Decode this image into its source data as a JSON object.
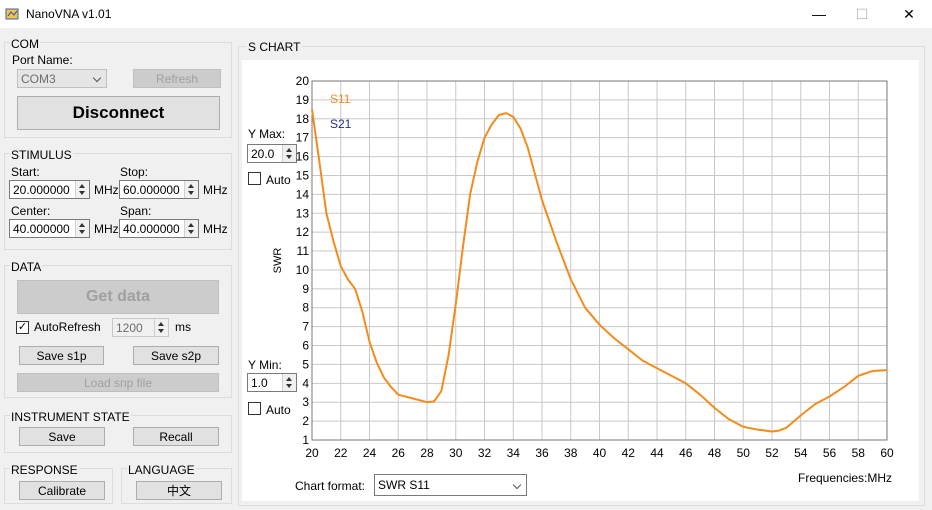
{
  "window": {
    "title": "NanoVNA v1.01",
    "minimize": "—",
    "maximize": "☐",
    "close": "✕"
  },
  "com": {
    "title": "COM",
    "port_label": "Port Name:",
    "port_value": "COM3",
    "refresh": "Refresh",
    "disconnect": "Disconnect"
  },
  "stimulus": {
    "title": "STIMULUS",
    "start_label": "Start:",
    "start_value": "20.000000",
    "stop_label": "Stop:",
    "stop_value": "60.000000",
    "center_label": "Center:",
    "center_value": "40.000000",
    "span_label": "Span:",
    "span_value": "40.000000",
    "unit": "MHz"
  },
  "data_group": {
    "title": "DATA",
    "get_data": "Get data",
    "autorefresh_label": "AutoRefresh",
    "autorefresh_checked": true,
    "interval_value": "1200",
    "interval_unit": "ms",
    "save_s1p": "Save s1p",
    "save_s2p": "Save s2p",
    "load_snp": "Load snp file"
  },
  "instrument": {
    "title": "INSTRUMENT STATE",
    "save": "Save",
    "recall": "Recall"
  },
  "response": {
    "title": "RESPONSE",
    "calibrate": "Calibrate"
  },
  "language": {
    "title": "LANGUAGE",
    "button": "中文"
  },
  "chart_section": {
    "title": "S CHART",
    "ymax_label": "Y Max:",
    "ymax_value": "20.0",
    "ymax_auto": "Auto",
    "ymin_label": "Y Min:",
    "ymin_value": "1.0",
    "ymin_auto": "Auto",
    "format_label": "Chart format:",
    "format_value": "SWR S11",
    "freq_label": "Frequencies:MHz"
  },
  "colors": {
    "s11": "#f28c1c",
    "s21": "#1f2f8f",
    "grid": "#c8c8c8"
  },
  "chart_data": {
    "type": "line",
    "xlabel": "",
    "ylabel": "SWR",
    "xlim": [
      20,
      60
    ],
    "ylim": [
      1,
      20
    ],
    "x_ticks": [
      "20",
      "22",
      "24",
      "26",
      "28",
      "30",
      "32",
      "34",
      "36",
      "38",
      "40",
      "42",
      "44",
      "46",
      "48",
      "50",
      "52",
      "54",
      "56",
      "58",
      "60"
    ],
    "y_ticks": [
      "1",
      "2",
      "3",
      "4",
      "5",
      "6",
      "7",
      "8",
      "9",
      "10",
      "11",
      "12",
      "13",
      "14",
      "15",
      "16",
      "17",
      "18",
      "19",
      "20"
    ],
    "legend": [
      "S11",
      "S21"
    ],
    "series": [
      {
        "name": "S11",
        "x": [
          20,
          20.5,
          21,
          21.5,
          22,
          22.5,
          23,
          23.5,
          24,
          24.5,
          25,
          25.5,
          26,
          27,
          28,
          28.5,
          29,
          29.5,
          30,
          30.5,
          31,
          31.5,
          32,
          32.5,
          33,
          33.5,
          34,
          34.5,
          35,
          36,
          37,
          38,
          39,
          40,
          41,
          42,
          43,
          44,
          45,
          46,
          47,
          48,
          49,
          50,
          51,
          52,
          52.5,
          53,
          54,
          55,
          56,
          57,
          58,
          59,
          60
        ],
        "y": [
          18.5,
          15.8,
          13,
          11.5,
          10.2,
          9.5,
          9,
          7.8,
          6.2,
          5.1,
          4.3,
          3.8,
          3.4,
          3.2,
          3.0,
          3.05,
          3.6,
          5.5,
          8.2,
          11.2,
          14,
          15.7,
          17,
          17.7,
          18.2,
          18.3,
          18.1,
          17.5,
          16.5,
          13.7,
          11.5,
          9.5,
          8.0,
          7.1,
          6.4,
          5.8,
          5.2,
          4.8,
          4.4,
          4.0,
          3.4,
          2.7,
          2.1,
          1.7,
          1.55,
          1.45,
          1.5,
          1.65,
          2.3,
          2.9,
          3.3,
          3.8,
          4.4,
          4.65,
          4.7
        ]
      }
    ]
  }
}
